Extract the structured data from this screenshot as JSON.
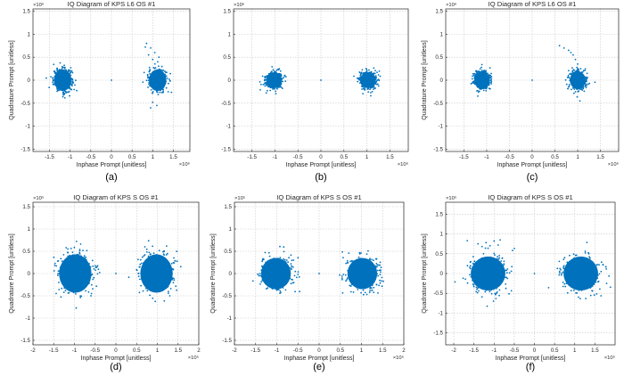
{
  "chart_data": [
    {
      "type": "scatter",
      "caption": "(a)",
      "title": "IQ Diagram of KPS L6 OS #1",
      "xlabel": "Inphase Prompt [unitless]",
      "ylabel": "Quadrature Prompt [unitless]",
      "x_exponent": "×10⁶",
      "y_exponent": "×10⁶",
      "xlim": [
        -1.9,
        1.9
      ],
      "ylim": [
        -1.55,
        1.55
      ],
      "xticks": [
        -1.5,
        -1,
        -0.5,
        0,
        0.5,
        1,
        1.5
      ],
      "yticks": [
        -1.5,
        -1,
        -0.5,
        0,
        0.5,
        1,
        1.5
      ],
      "grid": true,
      "marker_color": "#0072bd",
      "clusters": [
        {
          "x": -1.18,
          "y": 0.0,
          "rx": 0.27,
          "ry": 0.3
        },
        {
          "x": 1.12,
          "y": 0.0,
          "rx": 0.27,
          "ry": 0.3
        }
      ],
      "outliers": [
        [
          0.85,
          0.8
        ],
        [
          0.95,
          0.7
        ],
        [
          1.05,
          0.6
        ],
        [
          0.9,
          0.55
        ],
        [
          1.0,
          0.45
        ],
        [
          0.95,
          -0.6
        ],
        [
          1.1,
          -0.55
        ],
        [
          1.0,
          -0.48
        ],
        [
          0.82,
          0.72
        ],
        [
          1.15,
          0.5
        ]
      ]
    },
    {
      "type": "scatter",
      "caption": "(b)",
      "title": "",
      "xlabel": "Inphase Prompt [unitless]",
      "ylabel": "",
      "x_exponent": "×10⁶",
      "y_exponent": "×10⁶",
      "xlim": [
        -1.9,
        1.9
      ],
      "ylim": [
        -1.55,
        1.55
      ],
      "xticks": [
        -1.5,
        -1,
        -0.5,
        0,
        0.5,
        1,
        1.5
      ],
      "yticks": [
        -1.5,
        -1,
        -0.5,
        0,
        0.5,
        1,
        1.5
      ],
      "grid": true,
      "marker_color": "#0072bd",
      "clusters": [
        {
          "x": -1.02,
          "y": 0.0,
          "rx": 0.22,
          "ry": 0.22
        },
        {
          "x": 1.02,
          "y": 0.0,
          "rx": 0.22,
          "ry": 0.22
        }
      ],
      "outliers": []
    },
    {
      "type": "scatter",
      "caption": "(c)",
      "title": "IQ Diagram of KPS L6 OS #1",
      "xlabel": "Inphase Prompt [unitless]",
      "ylabel": "Quadrature Prompt [unitless]",
      "x_exponent": "×10⁶",
      "y_exponent": "×10⁶",
      "xlim": [
        -1.9,
        1.9
      ],
      "ylim": [
        -1.55,
        1.55
      ],
      "xticks": [
        -1.5,
        -1,
        -0.5,
        0,
        0.5,
        1,
        1.5
      ],
      "yticks": [
        -1.5,
        -1,
        -0.5,
        0,
        0.5,
        1,
        1.5
      ],
      "grid": true,
      "marker_color": "#0072bd",
      "clusters": [
        {
          "x": -1.1,
          "y": 0.0,
          "rx": 0.22,
          "ry": 0.25
        },
        {
          "x": 1.0,
          "y": 0.0,
          "rx": 0.22,
          "ry": 0.25
        }
      ],
      "outliers": [
        [
          0.6,
          0.75
        ],
        [
          0.7,
          0.7
        ],
        [
          0.8,
          0.65
        ],
        [
          0.9,
          0.55
        ],
        [
          0.95,
          0.45
        ],
        [
          1.0,
          0.35
        ],
        [
          0.85,
          0.6
        ],
        [
          1.05,
          -0.45
        ]
      ]
    },
    {
      "type": "scatter",
      "caption": "(d)",
      "title": "IQ Diagram of KPS S OS #1",
      "xlabel": "Inphase Prompt [unitless]",
      "ylabel": "Quadrature Prompt [unitless]",
      "x_exponent": "×10⁵",
      "y_exponent": "×10⁵",
      "xlim": [
        -2.0,
        2.0
      ],
      "ylim": [
        -1.6,
        1.6
      ],
      "xticks": [
        -2,
        -1.5,
        -1,
        -0.5,
        0,
        0.5,
        1,
        1.5,
        2
      ],
      "yticks": [
        -1.5,
        -1,
        -0.5,
        0,
        0.5,
        1,
        1.5
      ],
      "grid": true,
      "marker_color": "#0072bd",
      "clusters": [
        {
          "x": -0.98,
          "y": 0.0,
          "rx": 0.5,
          "ry": 0.55
        },
        {
          "x": 0.98,
          "y": 0.0,
          "rx": 0.5,
          "ry": 0.55
        }
      ],
      "outliers": [
        [
          -0.95,
          0.72
        ],
        [
          -0.85,
          0.66
        ],
        [
          -1.2,
          0.58
        ],
        [
          -0.6,
          -0.5
        ],
        [
          0.7,
          0.6
        ],
        [
          1.3,
          -0.5
        ]
      ]
    },
    {
      "type": "scatter",
      "caption": "(e)",
      "title": "IQ Diagram of KPS S OS #1",
      "xlabel": "Inphase Prompt [unitless]",
      "ylabel": "Quadrature Prompt [unitless]",
      "x_exponent": "×10⁵",
      "y_exponent": "×10⁵",
      "xlim": [
        -2.0,
        2.0
      ],
      "ylim": [
        -1.6,
        1.6
      ],
      "xticks": [
        -2,
        -1.5,
        -1,
        -0.5,
        0,
        0.5,
        1,
        1.5,
        2
      ],
      "yticks": [
        -1.5,
        -1,
        -0.5,
        0,
        0.5,
        1,
        1.5
      ],
      "grid": true,
      "marker_color": "#0072bd",
      "clusters": [
        {
          "x": -1.02,
          "y": 0.0,
          "rx": 0.45,
          "ry": 0.45
        },
        {
          "x": 1.02,
          "y": 0.0,
          "rx": 0.45,
          "ry": 0.45
        }
      ],
      "outliers": []
    },
    {
      "type": "scatter",
      "caption": "(f)",
      "title": "IQ Diagram of KPS S OS #1",
      "xlabel": "Inphase Prompt [unitless]",
      "ylabel": "Quadrature Prompt [unitless]",
      "x_exponent": "×10⁵",
      "y_exponent": "×10⁵",
      "xlim": [
        -2.2,
        2.0
      ],
      "ylim": [
        -1.8,
        1.8
      ],
      "xticks": [
        -2,
        -1.5,
        -1,
        -0.5,
        0,
        0.5,
        1,
        1.5
      ],
      "yticks": [
        -1.5,
        -1,
        -0.5,
        0,
        0.5,
        1,
        1.5
      ],
      "grid": true,
      "marker_color": "#0072bd",
      "clusters": [
        {
          "x": -1.15,
          "y": 0.0,
          "rx": 0.55,
          "ry": 0.55
        },
        {
          "x": 1.15,
          "y": 0.0,
          "rx": 0.55,
          "ry": 0.55
        }
      ],
      "outliers": [
        [
          -1.4,
          0.75
        ],
        [
          -1.2,
          0.78
        ],
        [
          -1.0,
          0.82
        ],
        [
          -0.9,
          0.72
        ],
        [
          -1.3,
          0.68
        ],
        [
          -0.85,
          0.85
        ],
        [
          -1.1,
          0.7
        ]
      ]
    }
  ]
}
